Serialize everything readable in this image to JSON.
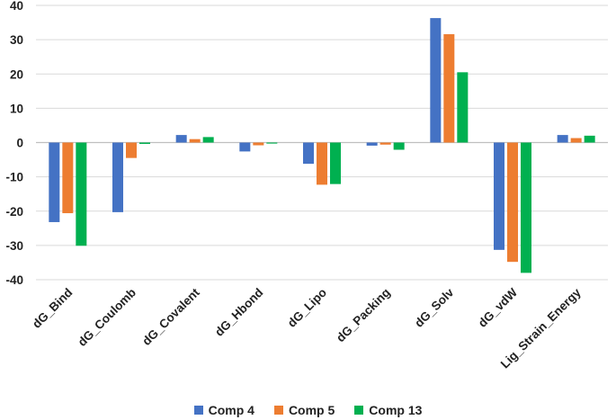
{
  "chart_data": {
    "type": "bar",
    "title": "",
    "xlabel": "",
    "ylabel": "",
    "categories": [
      "dG_Bind",
      "dG_Coulomb",
      "dG_Covalent",
      "dG_Hbond",
      "dG_Lipo",
      "dG_Packing",
      "dG_Solv",
      "dG_vdW",
      "Lig_Strain_Energy"
    ],
    "series": [
      {
        "name": "Comp 4",
        "color": "#4472C4",
        "values": [
          -23.2,
          -20.3,
          2.2,
          -2.6,
          -6.2,
          -0.9,
          36.3,
          -31.3,
          2.2
        ]
      },
      {
        "name": "Comp 5",
        "color": "#ED7D31",
        "values": [
          -20.6,
          -4.5,
          1.0,
          -0.8,
          -12.3,
          -0.6,
          31.6,
          -34.8,
          1.3
        ]
      },
      {
        "name": "Comp 13",
        "color": "#00B050",
        "values": [
          -30.1,
          -0.4,
          1.6,
          -0.3,
          -12.1,
          -2.1,
          20.5,
          -38.0,
          2.0
        ]
      }
    ],
    "yticks": [
      40,
      30,
      20,
      10,
      0,
      -10,
      -20,
      -30,
      -40
    ],
    "ylim": [
      -40,
      40
    ],
    "grid": true,
    "legend": "bottom-center"
  }
}
